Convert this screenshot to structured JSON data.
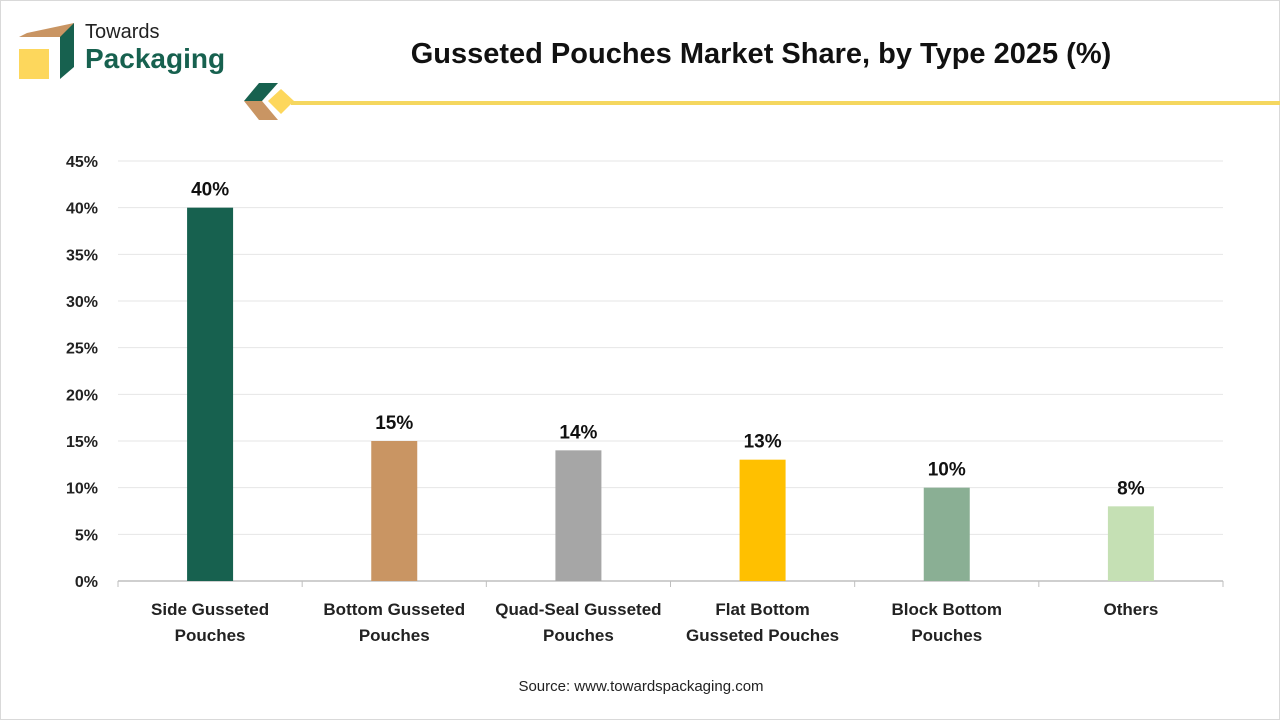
{
  "logo": {
    "line1": "Towards",
    "line2": "Packaging"
  },
  "title": "Gusseted Pouches Market Share, by Type 2025 (%)",
  "source": "Source: www.towardspackaging.com",
  "chart_data": {
    "type": "bar",
    "title": "Gusseted Pouches Market Share, by Type 2025 (%)",
    "categories": [
      [
        "Side Gusseted",
        "Pouches"
      ],
      [
        "Bottom Gusseted",
        "Pouches"
      ],
      [
        "Quad-Seal Gusseted",
        "Pouches"
      ],
      [
        "Flat Bottom",
        "Gusseted Pouches"
      ],
      [
        "Block Bottom",
        "Pouches"
      ],
      [
        "Others"
      ]
    ],
    "values": [
      40,
      15,
      14,
      13,
      10,
      8
    ],
    "data_labels": [
      "40%",
      "15%",
      "14%",
      "13%",
      "10%",
      "8%"
    ],
    "colors": [
      "#17614f",
      "#c99563",
      "#a6a6a6",
      "#ffc000",
      "#8aaf94",
      "#c5e0b4"
    ],
    "yticks": [
      "0%",
      "5%",
      "10%",
      "15%",
      "20%",
      "25%",
      "30%",
      "35%",
      "40%",
      "45%"
    ],
    "ylim": [
      0,
      45
    ],
    "xlabel": "",
    "ylabel": "",
    "grid": true
  }
}
